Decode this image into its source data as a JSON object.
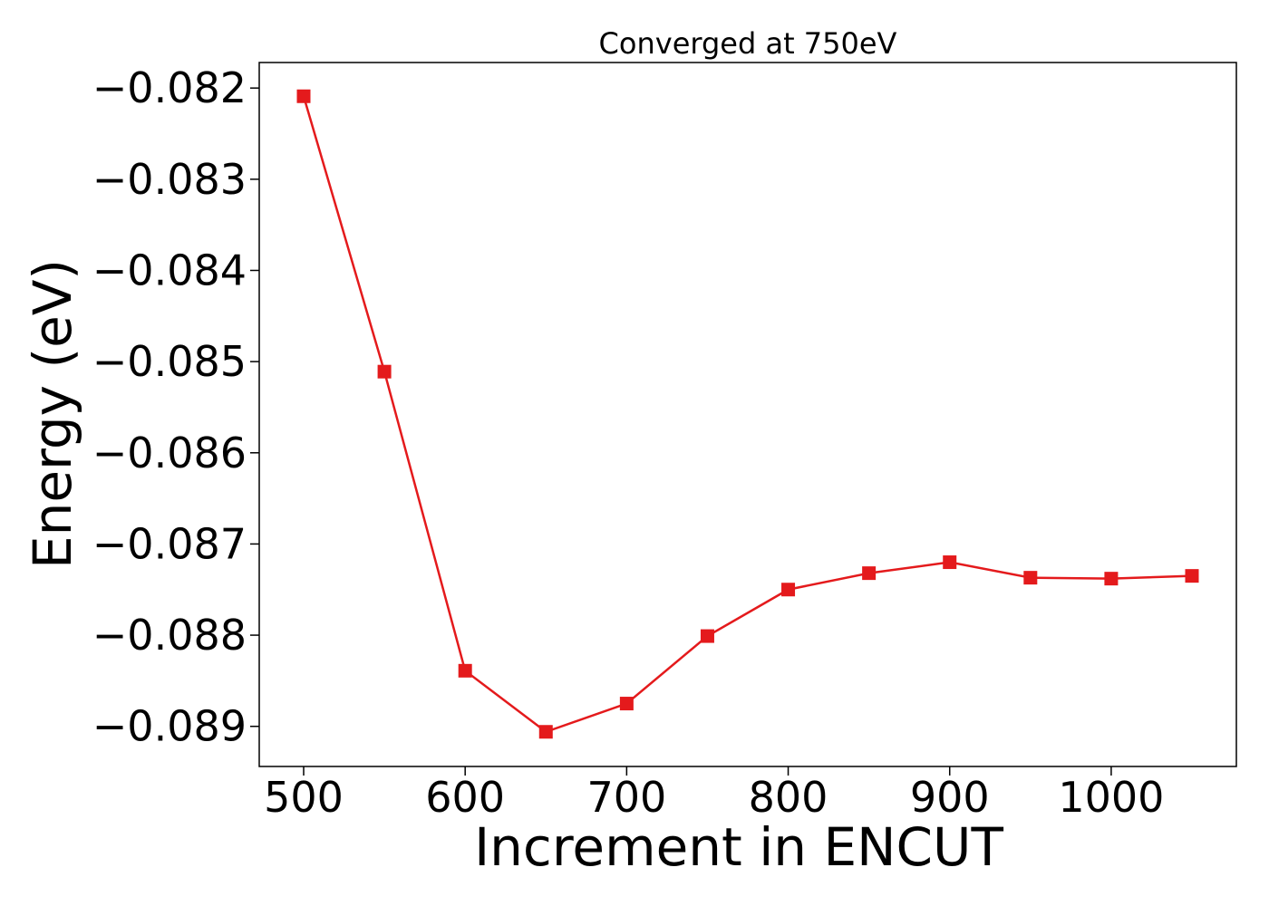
{
  "chart_data": {
    "type": "line",
    "title": "Converged at 750eV",
    "xlabel": "Increment in ENCUT",
    "ylabel": "Energy (eV)",
    "x": [
      500,
      550,
      600,
      650,
      700,
      750,
      800,
      850,
      900,
      950,
      1000,
      1050
    ],
    "series": [
      {
        "values": [
          -0.08209,
          -0.08511,
          -0.08839,
          -0.08906,
          -0.08875,
          -0.08801,
          -0.0875,
          -0.08732,
          -0.0872,
          -0.08737,
          -0.08738,
          -0.08735
        ],
        "color": "#e41a1c",
        "marker": "square"
      }
    ],
    "xlim": [
      472.5,
      1077.5
    ],
    "ylim": [
      -0.08944,
      -0.08172
    ],
    "xticks": [
      500,
      600,
      700,
      800,
      900,
      1000
    ],
    "xtick_labels": [
      "500",
      "600",
      "700",
      "800",
      "900",
      "1000"
    ],
    "yticks": [
      -0.082,
      -0.083,
      -0.084,
      -0.085,
      -0.086,
      -0.087,
      -0.088,
      -0.089
    ],
    "ytick_labels": [
      "−0.082",
      "−0.083",
      "−0.084",
      "−0.085",
      "−0.086",
      "−0.087",
      "−0.088",
      "−0.089"
    ],
    "grid": false,
    "legend": "none"
  }
}
